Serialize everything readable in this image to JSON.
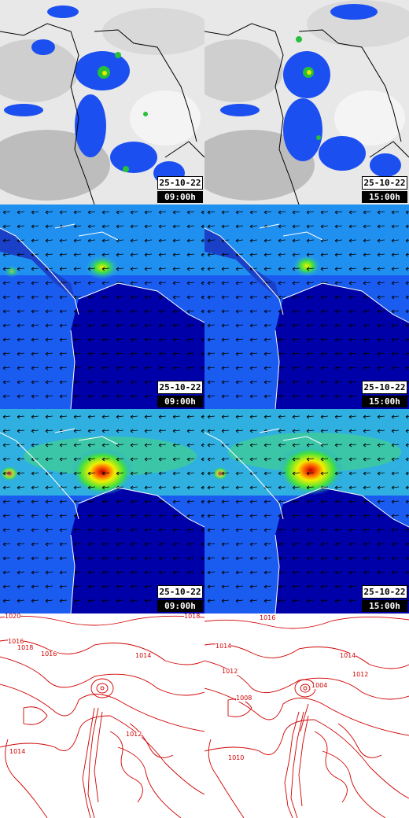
{
  "panels": {
    "r1c1": {
      "date": "25-10-22",
      "time": "09:00h"
    },
    "r1c2": {
      "date": "25-10-22",
      "time": "15:00h"
    },
    "r2c1": {
      "date": "25-10-22",
      "time": "09:00h"
    },
    "r2c2": {
      "date": "25-10-22",
      "time": "15:00h"
    },
    "r3c1": {
      "date": "25-10-22",
      "time": "09:00h"
    },
    "r3c2": {
      "date": "25-10-22",
      "time": "15:00h"
    }
  },
  "isobars": {
    "left": [
      "1020",
      "1016",
      "1018",
      "1016",
      "1014",
      "1012",
      "1014",
      "1018"
    ],
    "right": [
      "1016",
      "1014",
      "1012",
      "1014",
      "1012",
      "1008",
      "1004",
      "1010"
    ]
  },
  "colors": {
    "ocean_wind": "#1a5cf0",
    "land_wind": "#0000a8",
    "coast": "#ffffff",
    "isobar": "#d00000",
    "cloud": "#d4d4d4"
  }
}
